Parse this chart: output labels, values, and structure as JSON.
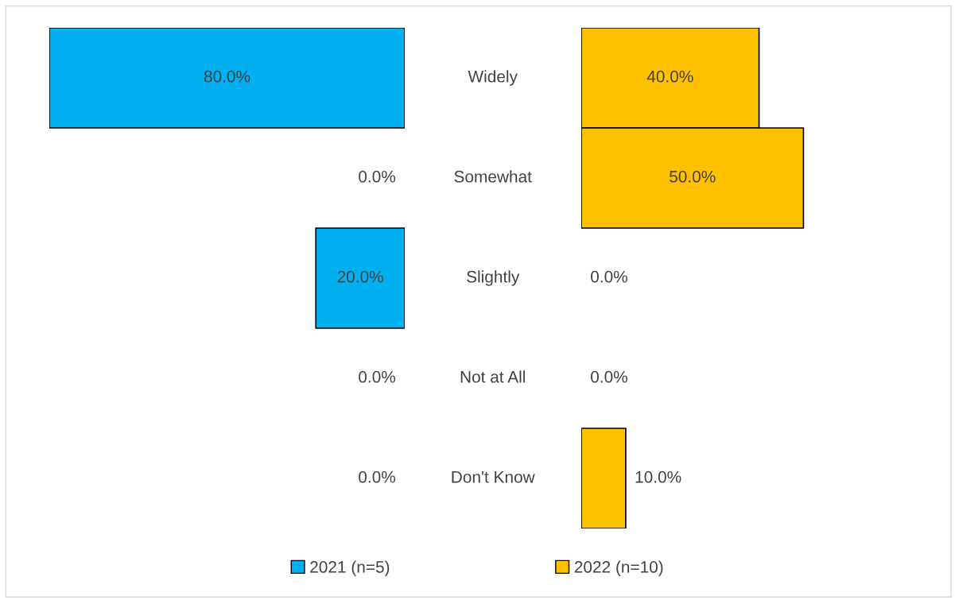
{
  "chart_data": [
    {
      "type": "bar",
      "orientation": "horizontal",
      "categories": [
        "Widely",
        "Somewhat",
        "Slightly",
        "Not at All",
        "Don't Know"
      ],
      "legend": "bottom",
      "series": [
        {
          "name": "2021 (n=5)",
          "color": "#00b0f0",
          "values": [
            80.0,
            0.0,
            20.0,
            0.0,
            0.0
          ],
          "value_labels": [
            "80.0%",
            "0.0%",
            "20.0%",
            "0.0%",
            "0.0%"
          ]
        }
      ]
    },
    {
      "type": "bar",
      "orientation": "horizontal",
      "categories": [
        null,
        null,
        null,
        null,
        null
      ],
      "legend": "bottom",
      "series": [
        {
          "name": "2022 (n=10)",
          "color": "#ffc000",
          "values": [
            40.0,
            50.0,
            0.0,
            0.0,
            10.0
          ],
          "value_labels": [
            "40.0%",
            "50.0%",
            "0.0%",
            "0.0%",
            "10.0%"
          ]
        }
      ]
    }
  ]
}
